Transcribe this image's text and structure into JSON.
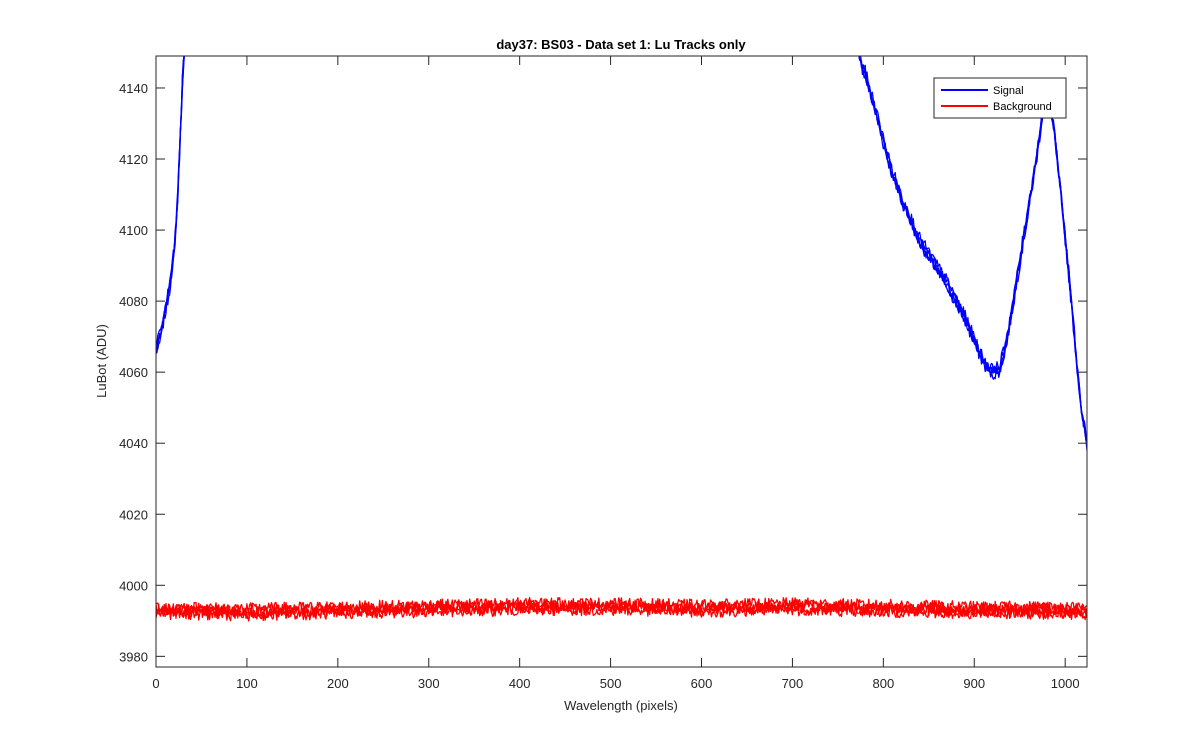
{
  "chart_data": {
    "type": "line",
    "title": "day37: BS03 - Data set 1: Lu Tracks only",
    "xlabel": "Wavelength (pixels)",
    "ylabel": "LuBot (ADU)",
    "xlim": [
      0,
      1024
    ],
    "ylim": [
      3977,
      4149
    ],
    "x_ticks": [
      0,
      100,
      200,
      300,
      400,
      500,
      600,
      700,
      800,
      900,
      1000
    ],
    "y_ticks": [
      3980,
      4000,
      4020,
      4040,
      4060,
      4080,
      4100,
      4120,
      4140
    ],
    "grid": false,
    "legend_position": "top-right",
    "series": [
      {
        "name": "Signal",
        "color": "#0000ff",
        "segments": [
          {
            "x": [
              0,
              5,
              10,
              15,
              20,
              24,
              27,
              29,
              31
            ],
            "y": [
              4066,
              4071,
              4077,
              4084,
              4094,
              4110,
              4128,
              4142,
              4149
            ]
          },
          {
            "x": [
              773,
              780,
              790,
              800,
              810,
              820,
              830,
              840,
              850,
              860,
              870,
              880,
              890,
              900,
              910,
              920,
              928,
              935,
              945,
              955,
              962,
              970,
              976,
              981,
              987,
              995,
              1005,
              1012,
              1018,
              1024
            ],
            "y": [
              4149,
              4144,
              4135,
              4125,
              4116,
              4109,
              4103,
              4097,
              4093,
              4089,
              4085,
              4080,
              4075,
              4069,
              4063,
              4060,
              4061,
              4068,
              4083,
              4099,
              4110,
              4123,
              4135,
              4137,
              4130,
              4111,
              4085,
              4065,
              4049,
              4040
            ]
          }
        ],
        "noise_amplitude": 1.5,
        "line_count": 4
      },
      {
        "name": "Background",
        "color": "#ff0000",
        "x": [
          0,
          100,
          200,
          300,
          400,
          500,
          600,
          700,
          800,
          900,
          1000,
          1024
        ],
        "y": [
          3993,
          3992.5,
          3993,
          3993.5,
          3994,
          3994,
          3993.5,
          3994,
          3993.5,
          3993,
          3993,
          3992.5
        ],
        "noise_amplitude": 1.6,
        "line_count": 4
      }
    ]
  }
}
